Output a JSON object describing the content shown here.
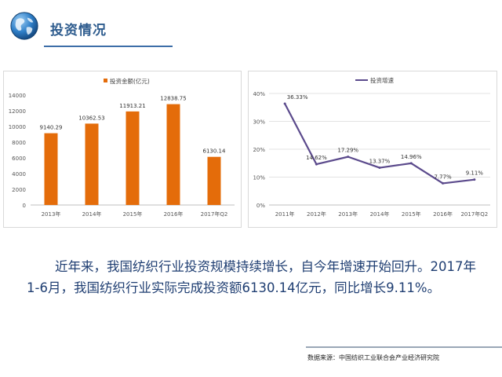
{
  "header": {
    "title": "投资情况",
    "icon": "globe-icon"
  },
  "charts": [
    {
      "type": "bar",
      "legend": "投资金额(亿元)",
      "categories": [
        "2013年",
        "2014年",
        "2015年",
        "2016年",
        "2017年Q2"
      ],
      "values": [
        9140.29,
        10362.53,
        11913.21,
        12838.75,
        6130.14
      ],
      "value_labels": [
        "9140.29",
        "10362.53",
        "11913.21",
        "12838.75",
        "6130.14"
      ],
      "ylim": [
        0,
        14000
      ],
      "yticks": [
        0,
        2000,
        4000,
        6000,
        8000,
        10000,
        12000,
        14000
      ],
      "ytick_labels": [
        "0",
        "2000",
        "4000",
        "6000",
        "8000",
        "10000",
        "12000",
        "14000"
      ],
      "color": "#e46c0a",
      "grid": false,
      "legend_position": "top"
    },
    {
      "type": "line",
      "legend": "投资增速",
      "categories": [
        "2011年",
        "2012年",
        "2013年",
        "2014年",
        "2015年",
        "2016年",
        "2017年Q2"
      ],
      "values": [
        36.33,
        14.62,
        17.29,
        13.37,
        14.96,
        7.77,
        9.11
      ],
      "value_labels": [
        "36.33%",
        "14.62%",
        "17.29%",
        "13.37%",
        "14.96%",
        "7.77%",
        "9.11%"
      ],
      "ylim": [
        0,
        40
      ],
      "yticks": [
        0,
        10,
        20,
        30,
        40
      ],
      "ytick_labels": [
        "0%",
        "10%",
        "20%",
        "30%",
        "40%"
      ],
      "color": "#5b4a8c",
      "grid": true,
      "legend_position": "top"
    }
  ],
  "body": {
    "line1": "近年来，我国纺织行业投资规模持续增长，自今年增速开始回升。2017年",
    "line2": "1-6月，我国纺织行业实际完成投资额6130.14亿元，同比增长9.11%。"
  },
  "footer": {
    "source": "数据来源：中国纺织工业联合会产业经济研究院"
  },
  "colors": {
    "title": "#2e5c8e",
    "body_text": "#1f3e72",
    "bar": "#e46c0a",
    "line": "#5b4a8c"
  }
}
